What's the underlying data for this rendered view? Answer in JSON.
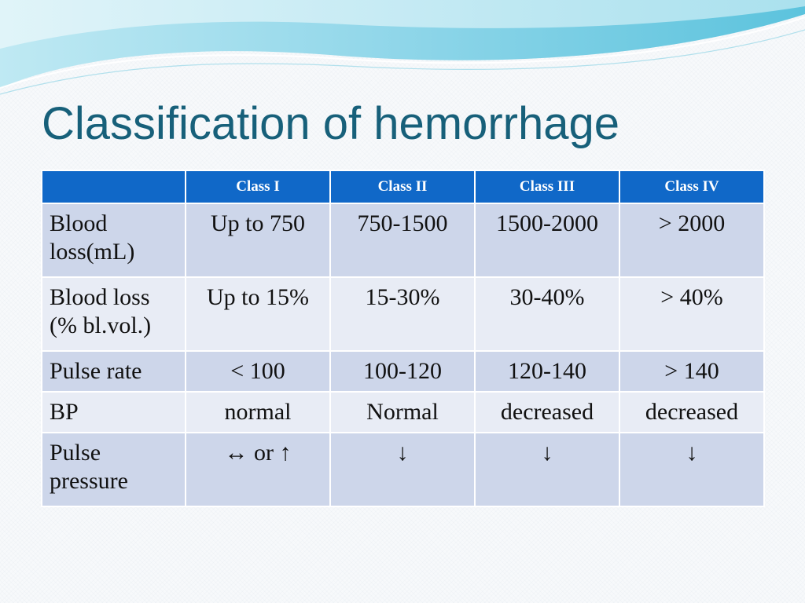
{
  "slide": {
    "title": "Classification of hemorrhage"
  },
  "colors": {
    "title": "#17607a",
    "header_bg": "#1068c8",
    "header_text": "#ffffff",
    "row_dark": "#cdd6ea",
    "row_light": "#e8ecf5",
    "wave_light": "#a9e1ef",
    "wave_mid": "#5cc3dd"
  },
  "table": {
    "headers": [
      "",
      "Class I",
      "Class II",
      "Class III",
      "Class IV"
    ],
    "rows": [
      {
        "label": "Blood loss(mL)",
        "cells": [
          "Up to 750",
          "750-1500",
          "1500-2000",
          "> 2000"
        ]
      },
      {
        "label": "Blood loss (% bl.vol.)",
        "cells": [
          "Up to 15%",
          "15-30%",
          "30-40%",
          "> 40%"
        ]
      },
      {
        "label": "Pulse rate",
        "cells": [
          "< 100",
          "100-120",
          "120-140",
          "> 140"
        ]
      },
      {
        "label": "BP",
        "cells": [
          "normal",
          "Normal",
          "decreased",
          "decreased"
        ]
      },
      {
        "label": "Pulse pressure",
        "cells": [
          "↔ or ↑",
          "↓",
          "↓",
          "↓"
        ]
      }
    ]
  }
}
